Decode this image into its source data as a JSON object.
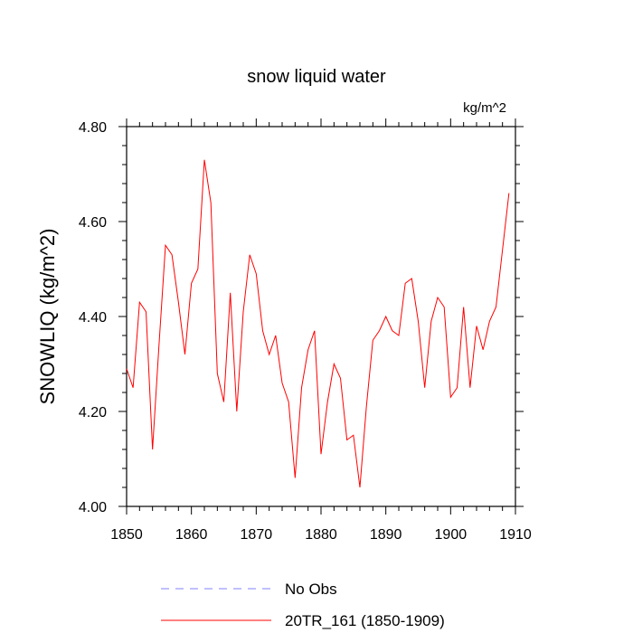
{
  "chart_data": {
    "type": "line",
    "title": "snow liquid water",
    "units": "kg/m^2",
    "xlabel": "",
    "ylabel": "SNOWLIQ  (kg/m^2)",
    "xlim": [
      1850,
      1910
    ],
    "ylim": [
      4.0,
      4.8
    ],
    "x_ticks": [
      1850,
      1860,
      1870,
      1880,
      1890,
      1900,
      1910
    ],
    "x_tick_labels": [
      "1850",
      "1860",
      "1870",
      "1880",
      "1890",
      "1900",
      "1910"
    ],
    "y_ticks": [
      4.0,
      4.2,
      4.4,
      4.6,
      4.8
    ],
    "y_tick_labels": [
      "4.00",
      "4.20",
      "4.40",
      "4.60",
      "4.80"
    ],
    "grid": false,
    "legend_position": "bottom",
    "series": [
      {
        "name": "20TR_161 (1850-1909)",
        "color": "#ff0000",
        "style": "solid",
        "x": [
          1850,
          1851,
          1852,
          1853,
          1854,
          1855,
          1856,
          1857,
          1858,
          1859,
          1860,
          1861,
          1862,
          1863,
          1864,
          1865,
          1866,
          1867,
          1868,
          1869,
          1870,
          1871,
          1872,
          1873,
          1874,
          1875,
          1876,
          1877,
          1878,
          1879,
          1880,
          1881,
          1882,
          1883,
          1884,
          1885,
          1886,
          1887,
          1888,
          1889,
          1890,
          1891,
          1892,
          1893,
          1894,
          1895,
          1896,
          1897,
          1898,
          1899,
          1900,
          1901,
          1902,
          1903,
          1904,
          1905,
          1906,
          1907,
          1908,
          1909
        ],
        "values": [
          4.29,
          4.25,
          4.43,
          4.41,
          4.12,
          4.34,
          4.55,
          4.53,
          4.43,
          4.32,
          4.47,
          4.5,
          4.73,
          4.64,
          4.28,
          4.22,
          4.45,
          4.2,
          4.41,
          4.53,
          4.49,
          4.37,
          4.32,
          4.36,
          4.26,
          4.22,
          4.06,
          4.25,
          4.33,
          4.37,
          4.11,
          4.22,
          4.3,
          4.27,
          4.14,
          4.15,
          4.04,
          4.21,
          4.35,
          4.37,
          4.4,
          4.37,
          4.36,
          4.47,
          4.48,
          4.39,
          4.25,
          4.39,
          4.44,
          4.42,
          4.23,
          4.25,
          4.42,
          4.25,
          4.38,
          4.33,
          4.39,
          4.42,
          4.54,
          4.66
        ]
      },
      {
        "name": "No Obs",
        "color": "#8080ff",
        "style": "dashed",
        "x": [],
        "values": []
      }
    ]
  }
}
